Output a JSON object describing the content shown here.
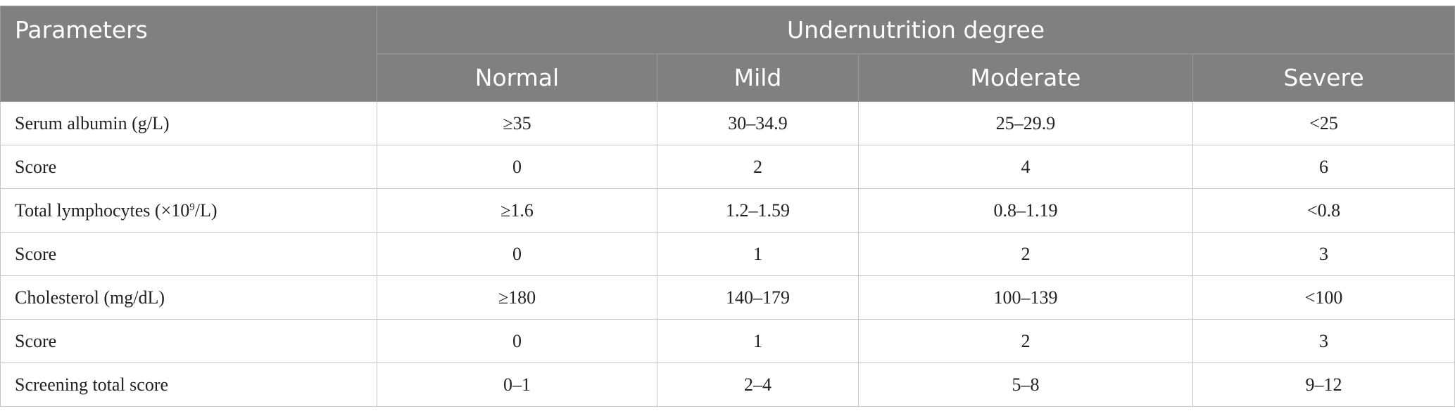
{
  "header": {
    "parameters": "Parameters",
    "group": "Undernutrition degree",
    "columns": [
      "Normal",
      "Mild",
      "Moderate",
      "Severe"
    ]
  },
  "rows": [
    {
      "label": "Serum albumin (g/L)",
      "values": [
        "≥35",
        "30–34.9",
        "25–29.9",
        "<25"
      ]
    },
    {
      "label": "Score",
      "values": [
        "0",
        "2",
        "4",
        "6"
      ]
    },
    {
      "label_pre": "Total lymphocytes (×10",
      "label_sup": "9",
      "label_post": "/L)",
      "values": [
        "≥1.6",
        "1.2–1.59",
        "0.8–1.19",
        "<0.8"
      ]
    },
    {
      "label": "Score",
      "values": [
        "0",
        "1",
        "2",
        "3"
      ]
    },
    {
      "label": "Cholesterol (mg/dL)",
      "values": [
        "≥180",
        "140–179",
        "100–139",
        "<100"
      ]
    },
    {
      "label": "Score",
      "values": [
        "0",
        "1",
        "2",
        "3"
      ]
    },
    {
      "label": "Screening total score",
      "values": [
        "0–1",
        "2–4",
        "5–8",
        "9–12"
      ]
    }
  ]
}
